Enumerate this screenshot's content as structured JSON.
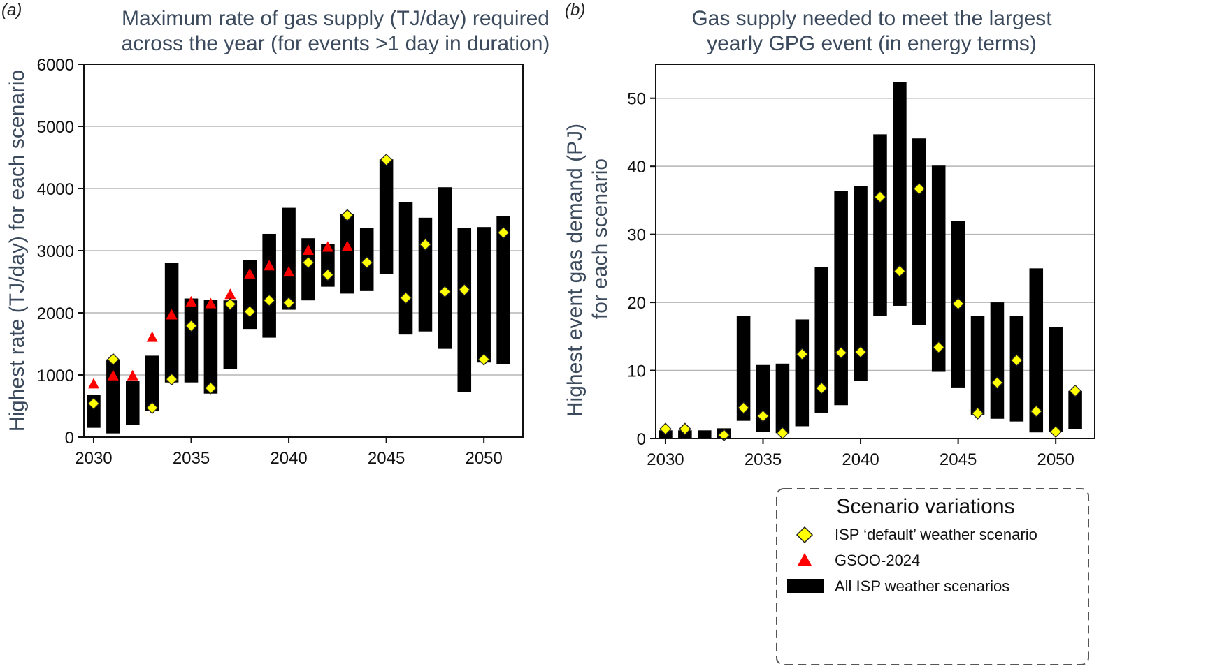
{
  "chart_data": [
    {
      "panel": "(a)",
      "type": "bar",
      "title_lines": [
        "Maximum rate of gas supply (TJ/day) required",
        "across the year (for events >1 day in duration)"
      ],
      "xlabel": "",
      "ylabel": "Highest rate (TJ/day) for each scenario",
      "xlim": [
        2029.5,
        2052
      ],
      "ylim": [
        0,
        6000
      ],
      "x_ticks": [
        2030,
        2035,
        2040,
        2045,
        2050
      ],
      "y_ticks": [
        0,
        1000,
        2000,
        3000,
        4000,
        5000,
        6000
      ],
      "grid": "horizontal",
      "years": [
        2030,
        2031,
        2032,
        2033,
        2034,
        2035,
        2036,
        2037,
        2038,
        2039,
        2040,
        2041,
        2042,
        2043,
        2044,
        2045,
        2046,
        2047,
        2048,
        2049,
        2050,
        2051
      ],
      "series": [
        {
          "name": "All ISP weather scenarios",
          "kind": "range",
          "low": [
            150,
            60,
            200,
            420,
            880,
            880,
            700,
            1100,
            1740,
            1600,
            2050,
            2200,
            2420,
            2310,
            2350,
            2620,
            1650,
            1700,
            1420,
            720,
            1200,
            1170
          ],
          "high": [
            680,
            1250,
            900,
            1310,
            2800,
            2230,
            2210,
            2200,
            2850,
            3270,
            3690,
            3200,
            3110,
            3590,
            3360,
            4470,
            3780,
            3530,
            4020,
            3370,
            3380,
            3560
          ]
        },
        {
          "name": "ISP ‘default’ weather scenario",
          "kind": "diamond",
          "values": [
            540,
            1250,
            null,
            470,
            930,
            1790,
            790,
            2140,
            2020,
            2200,
            2160,
            2810,
            2610,
            3570,
            2810,
            4460,
            2240,
            3100,
            2340,
            2370,
            1250,
            3290
          ]
        },
        {
          "name": "GSOO-2024",
          "kind": "triangle",
          "values": [
            850,
            980,
            980,
            1600,
            1960,
            2170,
            2140,
            2290,
            2620,
            2750,
            2650,
            3000,
            3050,
            3060,
            null,
            null,
            null,
            null,
            null,
            null,
            null,
            null
          ]
        }
      ]
    },
    {
      "panel": "(b)",
      "type": "bar",
      "title_lines": [
        "Gas supply needed to meet the largest",
        "yearly GPG event (in energy terms)"
      ],
      "xlabel": "",
      "ylabel_lines": [
        "Highest event gas demand (PJ)",
        "for each scenario"
      ],
      "xlim": [
        2029.5,
        2052
      ],
      "ylim": [
        0,
        55
      ],
      "x_ticks": [
        2030,
        2035,
        2040,
        2045,
        2050
      ],
      "y_ticks": [
        0,
        10,
        20,
        30,
        40,
        50
      ],
      "grid": "horizontal",
      "years": [
        2030,
        2031,
        2032,
        2033,
        2034,
        2035,
        2036,
        2037,
        2038,
        2039,
        2040,
        2041,
        2042,
        2043,
        2044,
        2045,
        2046,
        2047,
        2048,
        2049,
        2050,
        2051
      ],
      "series": [
        {
          "name": "All ISP weather scenarios",
          "kind": "range",
          "low": [
            0,
            0,
            0,
            0,
            2.6,
            1.0,
            0.8,
            1.8,
            3.8,
            4.9,
            8.5,
            18.0,
            19.5,
            16.7,
            9.8,
            7.5,
            3.5,
            2.9,
            2.5,
            0.9,
            1.0,
            1.4
          ],
          "high": [
            1.2,
            1.2,
            1.2,
            1.5,
            18.0,
            10.8,
            11.0,
            17.5,
            25.2,
            36.4,
            37.1,
            44.7,
            52.4,
            44.1,
            40.1,
            32.0,
            18.0,
            20.0,
            18.0,
            25.0,
            16.4,
            7.0
          ]
        },
        {
          "name": "ISP ‘default’ weather scenario",
          "kind": "diamond",
          "values": [
            1.4,
            1.4,
            null,
            0.5,
            4.5,
            3.3,
            0.8,
            12.4,
            7.4,
            12.6,
            12.7,
            35.5,
            24.6,
            36.7,
            13.4,
            19.8,
            3.7,
            8.2,
            11.5,
            4.0,
            1.0,
            7.0
          ]
        }
      ]
    }
  ],
  "legend": {
    "title": "Scenario variations",
    "items": [
      {
        "label": "ISP ‘default’ weather scenario",
        "symbol": "diamond"
      },
      {
        "label": "GSOO-2024",
        "symbol": "triangle"
      },
      {
        "label": "All ISP weather scenarios",
        "symbol": "bar"
      }
    ]
  },
  "colors": {
    "bar": "#000000",
    "diamond": "#ffff00",
    "triangle": "#ff0000",
    "title": "#3b4a5c",
    "grid": "#b5b5b5"
  }
}
